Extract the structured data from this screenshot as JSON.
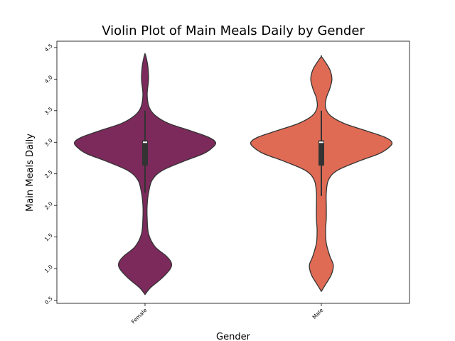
{
  "chart_data": {
    "type": "violin",
    "title": "Violin Plot of Main Meals Daily by Gender",
    "xlabel": "Gender",
    "ylabel": "Main Meals Daily",
    "categories": [
      "Female",
      "Male"
    ],
    "yticks": [
      "0.5",
      "1.0",
      "1.5",
      "2.0",
      "2.5",
      "3.0",
      "3.5",
      "4.0",
      "4.5"
    ],
    "ylim": [
      0.45,
      4.6
    ],
    "grid": false,
    "colors": {
      "Female": "#7b2a5b",
      "Male": "#df6b55"
    },
    "violins": [
      {
        "category": "Female",
        "q1": 2.63,
        "median": 3.0,
        "q3": 3.03,
        "whisker_low": 2.2,
        "whisker_high": 3.5,
        "profile": [
          [
            0.59,
            0.0
          ],
          [
            0.7,
            0.08
          ],
          [
            0.85,
            0.24
          ],
          [
            1.0,
            0.36
          ],
          [
            1.1,
            0.37
          ],
          [
            1.2,
            0.3
          ],
          [
            1.35,
            0.14
          ],
          [
            1.55,
            0.05
          ],
          [
            1.8,
            0.03
          ],
          [
            2.0,
            0.03
          ],
          [
            2.2,
            0.05
          ],
          [
            2.4,
            0.1
          ],
          [
            2.55,
            0.24
          ],
          [
            2.7,
            0.55
          ],
          [
            2.82,
            0.83
          ],
          [
            2.92,
            0.96
          ],
          [
            3.0,
            1.0
          ],
          [
            3.08,
            0.9
          ],
          [
            3.18,
            0.65
          ],
          [
            3.3,
            0.33
          ],
          [
            3.42,
            0.15
          ],
          [
            3.55,
            0.06
          ],
          [
            3.75,
            0.03
          ],
          [
            4.0,
            0.05
          ],
          [
            4.2,
            0.04
          ],
          [
            4.35,
            0.015
          ],
          [
            4.4,
            0.0
          ]
        ]
      },
      {
        "category": "Male",
        "q1": 2.63,
        "median": 3.0,
        "q3": 3.03,
        "whisker_low": 2.15,
        "whisker_high": 3.5,
        "profile": [
          [
            0.64,
            0.0
          ],
          [
            0.75,
            0.06
          ],
          [
            0.9,
            0.14
          ],
          [
            1.05,
            0.17
          ],
          [
            1.2,
            0.12
          ],
          [
            1.4,
            0.07
          ],
          [
            1.6,
            0.06
          ],
          [
            1.8,
            0.07
          ],
          [
            2.0,
            0.07
          ],
          [
            2.2,
            0.07
          ],
          [
            2.4,
            0.1
          ],
          [
            2.55,
            0.22
          ],
          [
            2.7,
            0.53
          ],
          [
            2.82,
            0.82
          ],
          [
            2.92,
            0.96
          ],
          [
            3.0,
            1.0
          ],
          [
            3.08,
            0.9
          ],
          [
            3.18,
            0.64
          ],
          [
            3.3,
            0.32
          ],
          [
            3.42,
            0.13
          ],
          [
            3.55,
            0.06
          ],
          [
            3.7,
            0.07
          ],
          [
            3.85,
            0.12
          ],
          [
            4.0,
            0.15
          ],
          [
            4.15,
            0.12
          ],
          [
            4.28,
            0.05
          ],
          [
            4.36,
            0.0
          ]
        ]
      }
    ]
  }
}
